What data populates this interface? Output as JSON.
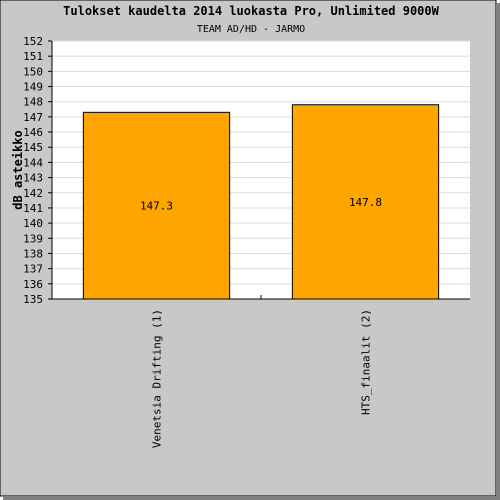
{
  "chart_data": {
    "type": "bar",
    "title": "Tulokset kaudelta 2014 luokasta Pro, Unlimited 9000W",
    "subtitle": "TEAM AD/HD - JARMO",
    "xlabel": "",
    "ylabel": "dB asteikko",
    "ylim": [
      135,
      152
    ],
    "ytick_step": 1,
    "grid": true,
    "categories": [
      "Venetsia Drifting (1)",
      "HTS_finaalit (2)"
    ],
    "values": [
      147.3,
      147.8
    ],
    "value_labels": [
      "147.3",
      "147.8"
    ],
    "colors": {
      "bar": "#ffa500",
      "bar_stroke": "#000000",
      "background": "#c8c8c8",
      "plot": "#ffffff",
      "grid": "#dcdcdc"
    }
  }
}
